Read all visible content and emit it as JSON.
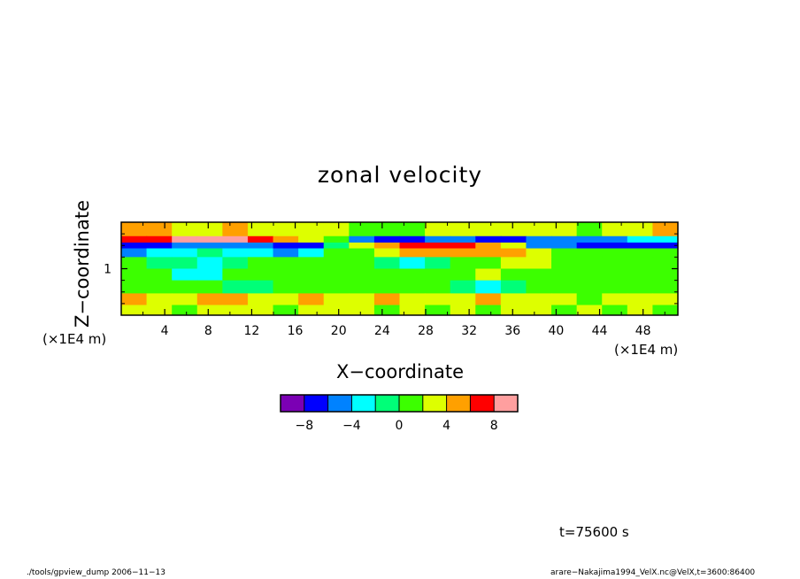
{
  "chart_data": {
    "type": "heatmap",
    "title": "zonal velocity",
    "xlabel": "X−coordinate",
    "ylabel": "Z−coordinate",
    "x_unit": "(×1E4 m)",
    "y_unit": "(×1E4 m)",
    "xlim": [
      0,
      51.2
    ],
    "ylim": [
      0.2,
      1.8
    ],
    "x_ticks": [
      4,
      8,
      12,
      16,
      20,
      24,
      28,
      32,
      36,
      40,
      44,
      48
    ],
    "y_ticks": [
      1
    ],
    "colorbar": {
      "levels": [
        -10,
        -8,
        -6,
        -4,
        -2,
        0,
        2,
        4,
        6,
        8,
        10
      ],
      "labeled_ticks": [
        -8,
        -4,
        0,
        4,
        8
      ],
      "colors": [
        "#7b00b4",
        "#0000ff",
        "#0082ff",
        "#00ffff",
        "#00ff78",
        "#3cff00",
        "#ddff00",
        "#ffa000",
        "#ff0000",
        "#ff9f9f"
      ]
    },
    "field_bands": [
      {
        "z": 1.62,
        "values": [
          4,
          5,
          3,
          3,
          4,
          3,
          3,
          2,
          2,
          1,
          1,
          1,
          2,
          2,
          3,
          2,
          2,
          2,
          1,
          2,
          3,
          4
        ]
      },
      {
        "z": 1.5,
        "values": [
          6,
          7,
          8,
          9,
          8,
          6,
          4,
          2,
          0,
          -6,
          -7,
          -7,
          -6,
          -6,
          -7,
          -7,
          -6,
          -6,
          -6,
          -6,
          -4,
          -3
        ]
      },
      {
        "z": 1.4,
        "values": [
          -8,
          -7,
          -6,
          -5,
          -5,
          -6,
          -7,
          -8,
          -1,
          2,
          5,
          6,
          6,
          6,
          4,
          3,
          -5,
          -6,
          -7,
          -8,
          -7,
          -8
        ]
      },
      {
        "z": 1.3,
        "values": [
          -6,
          -4,
          -3,
          -2,
          -3,
          -4,
          -5,
          -3,
          0,
          1,
          2,
          4,
          5,
          5,
          5,
          4,
          2,
          1,
          0,
          1,
          0,
          0
        ]
      },
      {
        "z": 1.1,
        "values": [
          0,
          -1,
          -2,
          -3,
          -2,
          0,
          1,
          0,
          1,
          0,
          -1,
          -3,
          -1,
          1,
          0,
          2,
          3,
          1,
          0,
          1,
          0,
          1
        ]
      },
      {
        "z": 0.9,
        "values": [
          1,
          0,
          -3,
          -3,
          0,
          1,
          0,
          0,
          0,
          1,
          0,
          0,
          1,
          0,
          2,
          1,
          0,
          0,
          1,
          0,
          0,
          0
        ]
      },
      {
        "z": 0.7,
        "values": [
          0,
          1,
          0,
          0,
          -1,
          -2,
          0,
          1,
          0,
          0,
          1,
          0,
          0,
          -1,
          -3,
          -2,
          0,
          1,
          0,
          1,
          0,
          0
        ]
      },
      {
        "z": 0.45,
        "values": [
          4,
          2,
          3,
          5,
          4,
          2,
          3,
          4,
          3,
          2,
          4,
          3,
          2,
          3,
          4,
          2,
          3,
          2,
          1,
          2,
          3,
          2
        ]
      },
      {
        "z": 0.3,
        "values": [
          3,
          2,
          1,
          2,
          3,
          2,
          1,
          2,
          3,
          2,
          1,
          2,
          1,
          2,
          1,
          2,
          3,
          1,
          2,
          1,
          2,
          1
        ]
      }
    ]
  },
  "annotations": {
    "time": "t=75600 s",
    "footer_left": "./tools/gpview_dump  2006−11−13",
    "footer_right": "arare−Nakajima1994_VelX.nc@VelX,t=3600:86400"
  }
}
